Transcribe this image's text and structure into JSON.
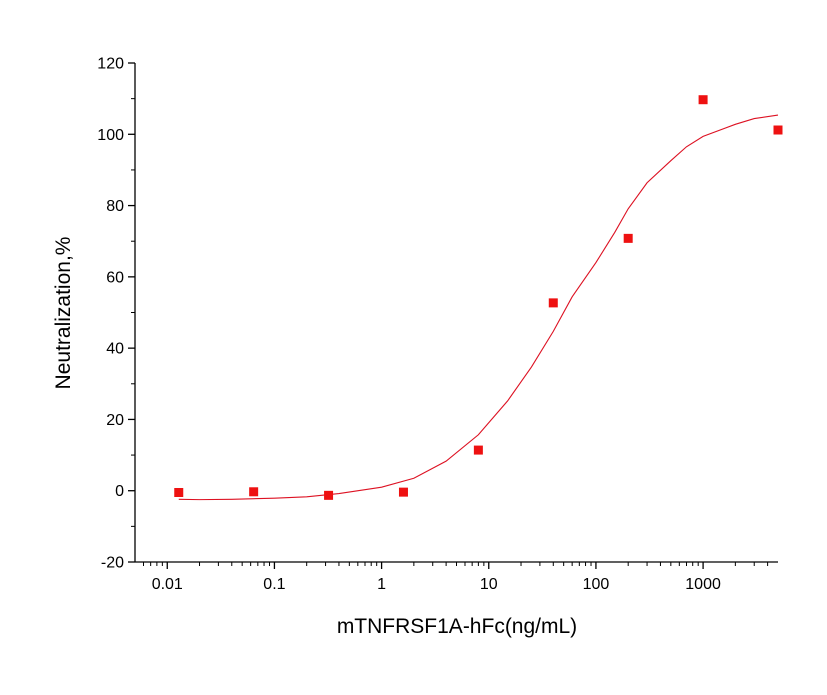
{
  "chart_data": {
    "type": "scatter",
    "xlabel": "mTNFRSF1A-hFc(ng/mL)",
    "ylabel": "Neutralization,%",
    "x_scale": "log",
    "xlim": [
      0.005,
      5000
    ],
    "ylim": [
      -20,
      120
    ],
    "x_ticks": [
      0.01,
      0.1,
      1,
      10,
      100,
      1000
    ],
    "x_tick_labels": [
      "0.01",
      "0.1",
      "1",
      "10",
      "100",
      "1000"
    ],
    "y_ticks": [
      -20,
      0,
      20,
      40,
      60,
      80,
      100,
      120
    ],
    "y_tick_labels": [
      "-20",
      "0",
      "20",
      "40",
      "60",
      "80",
      "100",
      "120"
    ],
    "grid": false,
    "legend": "none",
    "series": [
      {
        "kind": "points",
        "marker": "square",
        "color": "#ee1111",
        "x": [
          0.0128,
          0.064,
          0.32,
          1.6,
          8,
          40,
          200,
          1000,
          5000
        ],
        "y": [
          -0.5,
          -0.3,
          -1.3,
          -0.4,
          11.4,
          52.7,
          70.8,
          109.7,
          101.2
        ]
      },
      {
        "kind": "fitted-curve",
        "color": "#dd1122",
        "x": [
          0.0128,
          0.02,
          0.04,
          0.1,
          0.2,
          0.4,
          1,
          2,
          4,
          8,
          15,
          25,
          40,
          60,
          100,
          150,
          200,
          300,
          500,
          700,
          1000,
          2000,
          3000,
          5000
        ],
        "y": [
          -2.4,
          -2.5,
          -2.4,
          -2.1,
          -1.7,
          -0.8,
          1.0,
          3.5,
          8.3,
          15.7,
          25.2,
          34.7,
          44.7,
          54.4,
          64.0,
          72.5,
          79.1,
          86.4,
          92.6,
          96.5,
          99.4,
          102.8,
          104.4,
          105.4
        ]
      }
    ]
  }
}
